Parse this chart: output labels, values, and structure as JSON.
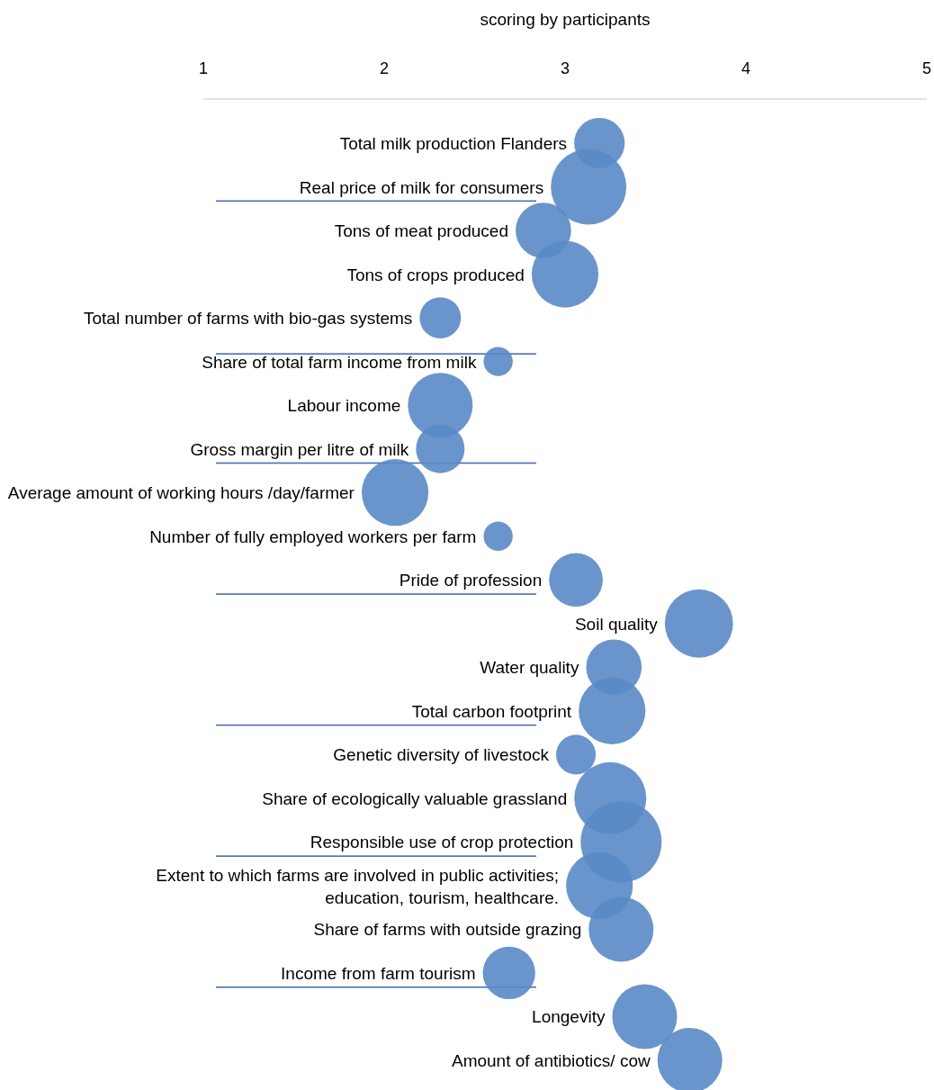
{
  "chart_data": {
    "type": "bubble",
    "xlabel": "scoring by participants",
    "orientation": "horizontal",
    "xlim": [
      1,
      5
    ],
    "xticks": [
      1,
      2,
      3,
      4,
      5
    ],
    "grid": false,
    "categories": [
      "Total milk production Flanders",
      "Real price of milk for consumers",
      "Tons of meat produced",
      "Tons of crops produced",
      "Total number of farms with bio-gas systems",
      "Share of total farm income from milk",
      "Labour income",
      "Gross margin per litre of milk",
      "Average amount of working hours /day/farmer",
      "Number of fully employed workers per farm",
      "Pride of profession",
      "Soil quality",
      "Water quality",
      "Total carbon footprint",
      "Genetic diversity of livestock",
      "Share of ecologically valuable grassland",
      "Responsible use of crop protection",
      "Extent to which farms are involved in public activities;\neducation, tourism, healthcare.",
      "Share of farms with outside grazing",
      "Income from farm tourism",
      "Longevity",
      "Amount of antibiotics/ cow"
    ],
    "series": [
      {
        "color": "#5a8ac6",
        "values": [
          3.19,
          3.13,
          2.88,
          3.0,
          2.31,
          2.63,
          2.31,
          2.31,
          2.06,
          2.63,
          3.06,
          3.74,
          3.27,
          3.26,
          3.06,
          3.25,
          3.31,
          3.19,
          3.31,
          2.69,
          3.44,
          3.69
        ],
        "sizes": [
          0.39,
          0.87,
          0.47,
          0.68,
          0.26,
          0.13,
          0.64,
          0.36,
          0.68,
          0.13,
          0.44,
          0.71,
          0.47,
          0.68,
          0.24,
          0.79,
          1,
          0.68,
          0.64,
          0.42,
          0.64,
          0.64
        ]
      }
    ]
  }
}
